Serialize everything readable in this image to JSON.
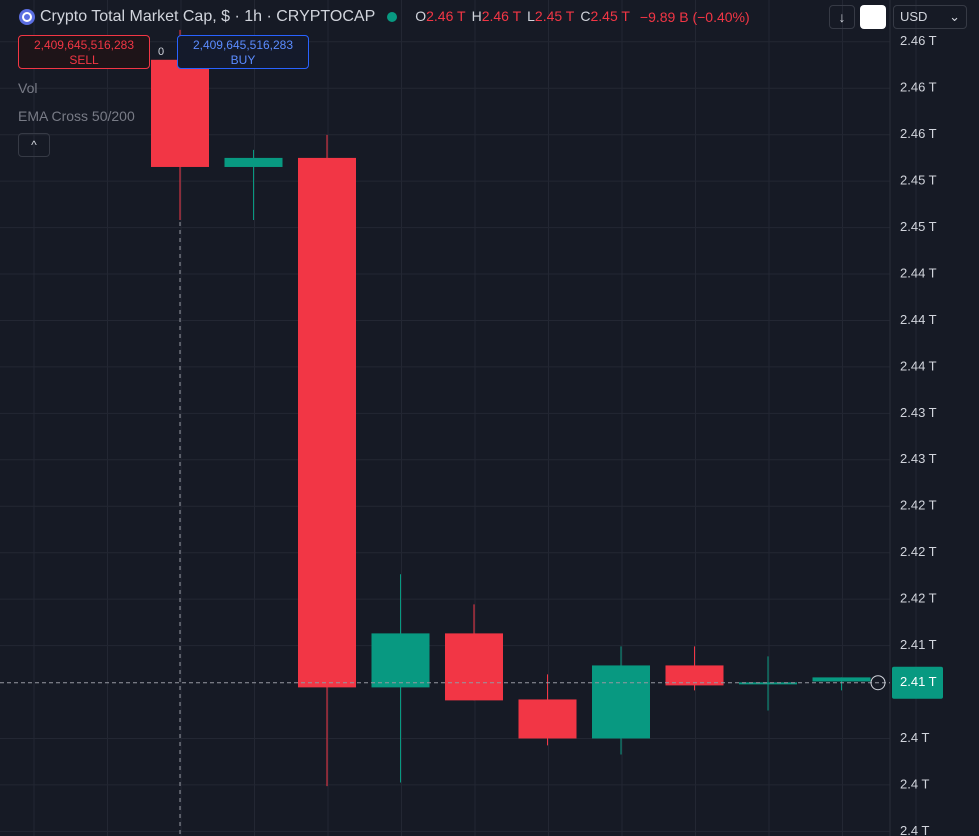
{
  "header": {
    "symbol": "Crypto Total Market Cap, $ · 1h · CRYPTOCAP",
    "ohlc": [
      {
        "key": "O",
        "value": "2.46 T"
      },
      {
        "key": "H",
        "value": "2.46 T"
      },
      {
        "key": "L",
        "value": "2.45 T"
      },
      {
        "key": "C",
        "value": "2.45 T"
      }
    ],
    "change": "−9.89 B (−0.40%)",
    "currency": "USD"
  },
  "trade": {
    "sell_price": "2,409,645,516,283",
    "sell": "SELL",
    "spread": "0",
    "buy_price": "2,409,645,516,283",
    "buy": "BUY"
  },
  "indicators": [
    "Vol",
    "EMA Cross 50/200"
  ],
  "chart_data": {
    "type": "candlestick",
    "up_color": "#089981",
    "down_color": "#f23645",
    "grid": true,
    "open": [
      2.46245,
      2.45322,
      2.454,
      2.4084,
      2.41305,
      2.40736,
      2.404,
      2.41029,
      2.40866,
      2.40891
    ],
    "high": [
      2.46503,
      2.45469,
      2.45598,
      2.41814,
      2.41555,
      2.40952,
      2.41193,
      2.41193,
      2.41107,
      2.40926
    ],
    "low": [
      2.44865,
      2.44865,
      2.3999,
      2.40021,
      2.40728,
      2.4034,
      2.40262,
      2.40814,
      2.40641,
      2.40814
    ],
    "close": [
      2.45322,
      2.454,
      2.4084,
      2.41305,
      2.40728,
      2.404,
      2.41029,
      2.40857,
      2.40883,
      2.40926
    ],
    "ylim": [
      2.3956,
      2.4676
    ],
    "yticks": [
      {
        "value": 2.464,
        "label": "2.46 T"
      },
      {
        "value": 2.46,
        "label": "2.46 T"
      },
      {
        "value": 2.456,
        "label": "2.46 T"
      },
      {
        "value": 2.452,
        "label": "2.45 T"
      },
      {
        "value": 2.448,
        "label": "2.45 T"
      },
      {
        "value": 2.444,
        "label": "2.44 T"
      },
      {
        "value": 2.44,
        "label": "2.44 T"
      },
      {
        "value": 2.436,
        "label": "2.44 T"
      },
      {
        "value": 2.432,
        "label": "2.43 T"
      },
      {
        "value": 2.428,
        "label": "2.43 T"
      },
      {
        "value": 2.424,
        "label": "2.42 T"
      },
      {
        "value": 2.42,
        "label": "2.42 T"
      },
      {
        "value": 2.416,
        "label": "2.42 T"
      },
      {
        "value": 2.412,
        "label": "2.41 T"
      },
      {
        "value": 2.404,
        "label": "2.4 T"
      },
      {
        "value": 2.4,
        "label": "2.4 T"
      },
      {
        "value": 2.396,
        "label": "2.4 T"
      }
    ],
    "last_price": {
      "value": 2.4088,
      "label": "2.41 T"
    }
  }
}
